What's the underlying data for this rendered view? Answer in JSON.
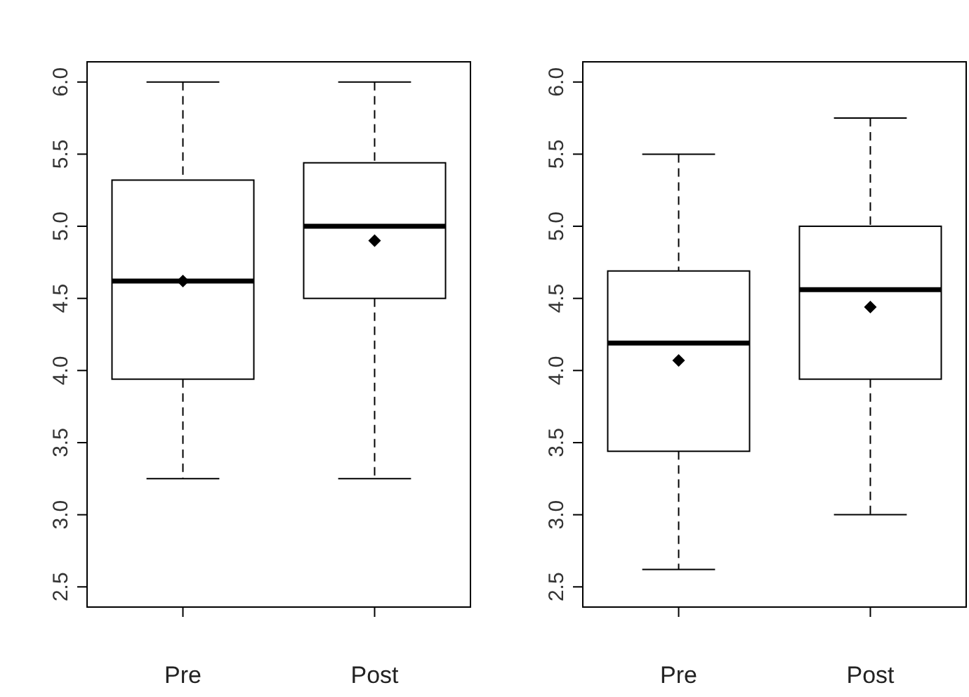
{
  "chart_data": [
    {
      "type": "box",
      "categories": [
        "Pre",
        "Post"
      ],
      "marker": "diamond",
      "ylim": [
        2.36,
        6.14
      ],
      "yticks": [
        {
          "value": 2.5,
          "label": "2.5"
        },
        {
          "value": 3,
          "label": "3.0"
        },
        {
          "value": 3.5,
          "label": "3.5"
        },
        {
          "value": 4,
          "label": "4.0"
        },
        {
          "value": 4.5,
          "label": "4.5"
        },
        {
          "value": 5,
          "label": "5.0"
        },
        {
          "value": 5.5,
          "label": "5.5"
        },
        {
          "value": 6,
          "label": "6.0"
        }
      ],
      "boxes": [
        {
          "low": 3.25,
          "q1": 3.94,
          "median": 4.62,
          "q3": 5.32,
          "high": 6.0,
          "mean": 4.62
        },
        {
          "low": 3.25,
          "q1": 4.5,
          "median": 5.0,
          "q3": 5.44,
          "high": 6.0,
          "mean": 4.9
        }
      ]
    },
    {
      "type": "box",
      "categories": [
        "Pre",
        "Post"
      ],
      "marker": "diamond",
      "ylim": [
        2.36,
        6.14
      ],
      "yticks": [
        {
          "value": 2.5,
          "label": "2.5"
        },
        {
          "value": 3,
          "label": "3.0"
        },
        {
          "value": 3.5,
          "label": "3.5"
        },
        {
          "value": 4,
          "label": "4.0"
        },
        {
          "value": 4.5,
          "label": "4.5"
        },
        {
          "value": 5,
          "label": "5.0"
        },
        {
          "value": 5.5,
          "label": "5.5"
        },
        {
          "value": 6,
          "label": "6.0"
        }
      ],
      "boxes": [
        {
          "low": 2.62,
          "q1": 3.44,
          "median": 4.19,
          "q3": 4.69,
          "high": 5.5,
          "mean": 4.07
        },
        {
          "low": 3.0,
          "q1": 3.94,
          "median": 4.56,
          "q3": 5.0,
          "high": 5.75,
          "mean": 4.44
        }
      ]
    }
  ]
}
